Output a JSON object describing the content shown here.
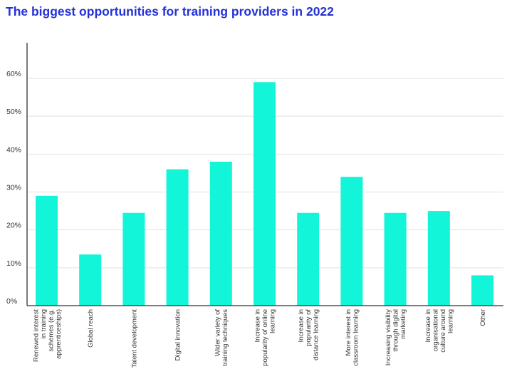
{
  "colors": {
    "bar": "#12f5d8",
    "title": "#2431d6",
    "grid": "#e2e2e2",
    "axis": "#333333"
  },
  "chart_data": {
    "type": "bar",
    "title": "The biggest opportunities for training providers in 2022",
    "xlabel": "",
    "ylabel": "",
    "ylim": [
      0,
      0.6
    ],
    "yticks": [
      {
        "value": 0,
        "label": "0%"
      },
      {
        "value": 0.1,
        "label": "10%"
      },
      {
        "value": 0.2,
        "label": "20%"
      },
      {
        "value": 0.3,
        "label": "30%"
      },
      {
        "value": 0.4,
        "label": "40%"
      },
      {
        "value": 0.5,
        "label": "50%"
      },
      {
        "value": 0.6,
        "label": "60%"
      }
    ],
    "grid": true,
    "legend": "none",
    "categories": [
      [
        "Renewed interest",
        "in training",
        "schemes (e.g.",
        "apprenticeships)"
      ],
      [
        "Global reach"
      ],
      [
        "Talent development"
      ],
      [
        "Digital innovation"
      ],
      [
        "Wider variety of",
        "training techniques"
      ],
      [
        "Increase in",
        "popularity of online",
        "learning"
      ],
      [
        "Increase in",
        "popularity of",
        "distance learning"
      ],
      [
        "More interest in",
        "classroom learning"
      ],
      [
        "Increasing visibility",
        "through digital",
        "marketing"
      ],
      [
        "Increase in",
        "organisational",
        "culture around",
        "learning"
      ],
      [
        "Other"
      ]
    ],
    "values": [
      0.29,
      0.135,
      0.245,
      0.36,
      0.38,
      0.59,
      0.245,
      0.34,
      0.245,
      0.25,
      0.08
    ]
  }
}
